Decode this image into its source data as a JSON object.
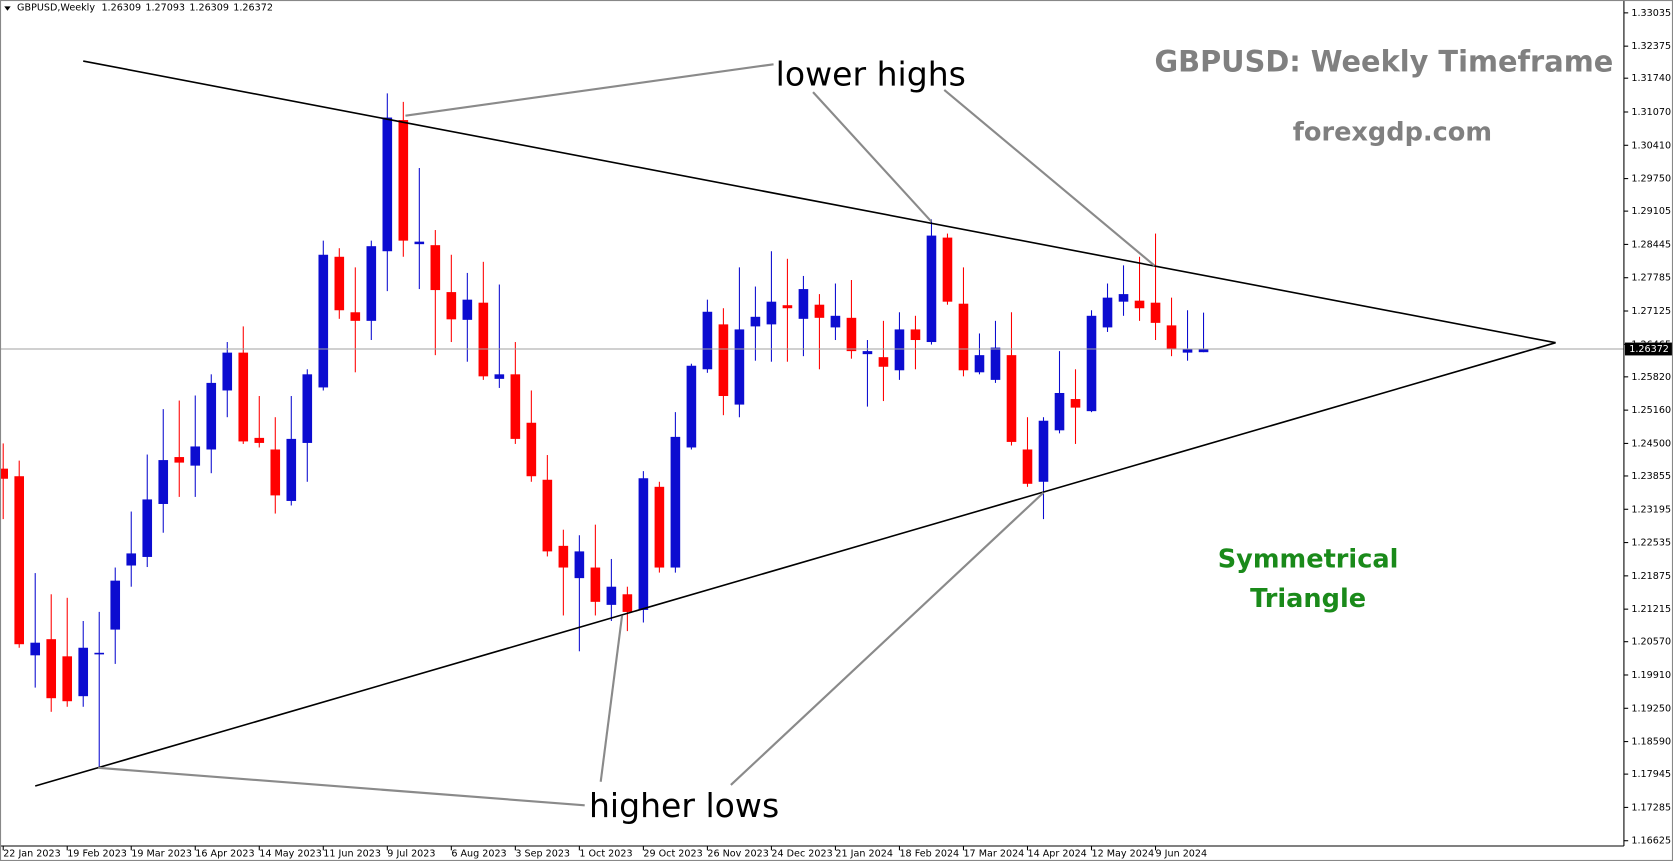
{
  "chart_data": {
    "type": "candlestick",
    "symbol": "GBPUSD,Weekly",
    "title": "GBPUSD: Weekly Timeframe",
    "subtitle": "forexgdp.com",
    "annotations": [
      "lower highs",
      "higher lows",
      "Symmetrical",
      "Triangle"
    ],
    "up_color": "#0c0cd0",
    "down_color": "#ff0000",
    "categories": [
      "22 Jan 2023",
      null,
      null,
      null,
      "19 Feb 2023",
      null,
      null,
      null,
      "19 Mar 2023",
      null,
      null,
      null,
      "16 Apr 2023",
      null,
      null,
      null,
      "14 May 2023",
      null,
      null,
      null,
      "11 Jun 2023",
      null,
      null,
      null,
      "9 Jul 2023",
      null,
      null,
      null,
      "6 Aug 2023",
      null,
      null,
      null,
      "3 Sep 2023",
      null,
      null,
      null,
      "1 Oct 2023",
      null,
      null,
      null,
      "29 Oct 2023",
      null,
      null,
      null,
      "26 Nov 2023",
      null,
      null,
      null,
      "24 Dec 2023",
      null,
      null,
      null,
      "21 Jan 2024",
      null,
      null,
      null,
      "18 Feb 2024",
      null,
      null,
      null,
      "17 Mar 2024",
      null,
      null,
      null,
      "14 Apr 2024",
      null,
      null,
      null,
      "12 May 2024",
      null,
      null,
      null,
      "9 Jun 2024",
      null,
      null,
      null
    ],
    "open": [
      1.24,
      1.2385,
      1.203,
      1.2062,
      1.2028,
      1.1949,
      1.2033,
      1.2081,
      1.2208,
      1.2225,
      1.233,
      1.2423,
      1.2406,
      1.2438,
      1.2555,
      1.263,
      1.2461,
      1.2438,
      1.2336,
      1.2451,
      1.2561,
      1.282,
      1.271,
      1.2693,
      1.2831,
      1.3091,
      1.2845,
      1.2843,
      1.275,
      1.2695,
      1.2729,
      1.2578,
      1.2587,
      1.2491,
      1.2378,
      1.2247,
      1.2183,
      1.2204,
      1.213,
      1.2151,
      1.212,
      1.2364,
      1.2204,
      1.2442,
      1.2597,
      1.2686,
      1.2527,
      1.2682,
      1.2686,
      1.2724,
      1.2697,
      1.2725,
      1.268,
      1.2699,
      1.2627,
      1.2621,
      1.2595,
      1.2676,
      1.2651,
      1.2858,
      1.2727,
      1.2591,
      1.2576,
      1.2625,
      1.2438,
      1.2374,
      1.2476,
      1.2538,
      1.2514,
      1.268,
      1.2731,
      1.2733,
      1.2729,
      1.2684,
      1.263,
      1.26309
    ],
    "high": [
      1.245,
      1.2416,
      1.2193,
      1.2151,
      1.2144,
      1.2098,
      1.2116,
      1.2204,
      1.2315,
      1.2428,
      1.2518,
      1.2535,
      1.2545,
      1.2587,
      1.2651,
      1.2682,
      1.2544,
      1.2502,
      1.2544,
      1.2597,
      1.2852,
      1.2837,
      1.2799,
      1.2852,
      1.3144,
      1.3127,
      1.2996,
      1.2873,
      1.2824,
      1.2788,
      1.281,
      1.2765,
      1.2651,
      1.2555,
      1.2427,
      1.2279,
      1.2268,
      1.2289,
      1.2221,
      1.2166,
      1.2395,
      1.2374,
      1.2512,
      1.2608,
      1.2735,
      1.2718,
      1.2799,
      1.2761,
      1.2831,
      1.2816,
      1.2782,
      1.2746,
      1.2767,
      1.2774,
      1.2655,
      1.2693,
      1.271,
      1.2703,
      1.2894,
      1.2866,
      1.2799,
      1.2668,
      1.2693,
      1.271,
      1.2502,
      1.2502,
      1.2633,
      1.2597,
      1.2714,
      1.2767,
      1.2803,
      1.282,
      1.2866,
      1.2739,
      1.2714,
      1.27093
    ],
    "low": [
      1.23,
      1.2045,
      1.1966,
      1.1918,
      1.1928,
      1.1928,
      1.1807,
      1.2013,
      1.2166,
      1.2205,
      1.2273,
      1.2344,
      1.2344,
      1.2391,
      1.2502,
      1.2449,
      1.2442,
      1.2311,
      1.2327,
      1.2374,
      1.2555,
      1.2697,
      1.2591,
      1.2655,
      1.2752,
      1.282,
      1.2756,
      1.2625,
      1.2651,
      1.2612,
      1.2576,
      1.256,
      1.2449,
      1.2374,
      1.2226,
      1.2109,
      1.2038,
      1.2109,
      1.2098,
      1.2078,
      1.2095,
      1.2194,
      1.2194,
      1.2438,
      1.259,
      1.2506,
      1.2502,
      1.2614,
      1.2612,
      1.2612,
      1.2623,
      1.2597,
      1.2655,
      1.2618,
      1.2523,
      1.2534,
      1.2576,
      1.2597,
      1.2646,
      1.2725,
      1.2583,
      1.2587,
      1.257,
      1.2446,
      1.2364,
      1.23,
      1.247,
      1.2449,
      1.2512,
      1.2671,
      1.2703,
      1.2693,
      1.2655,
      1.2623,
      1.2614,
      1.26309
    ],
    "close": [
      1.238,
      1.2052,
      1.2055,
      1.1945,
      1.1939,
      1.2045,
      1.2035,
      1.2178,
      1.2232,
      1.2339,
      1.2417,
      1.2412,
      1.2444,
      1.257,
      1.263,
      1.2454,
      1.2451,
      1.2347,
      1.2459,
      1.2587,
      1.2824,
      1.2714,
      1.2693,
      1.2841,
      1.3096,
      1.2852,
      1.285,
      1.2754,
      1.2696,
      1.2735,
      1.2583,
      1.2587,
      1.2459,
      1.2385,
      1.2236,
      1.2204,
      1.2236,
      1.2136,
      1.2166,
      1.2116,
      1.2381,
      1.2204,
      1.2463,
      1.2604,
      1.2711,
      1.2544,
      1.2676,
      1.2701,
      1.2731,
      1.2718,
      1.2756,
      1.2699,
      1.2703,
      1.2633,
      1.2633,
      1.2602,
      1.2676,
      1.2655,
      1.2862,
      1.2731,
      1.2595,
      1.2625,
      1.264,
      1.2453,
      1.237,
      1.2495,
      1.255,
      1.2521,
      1.2703,
      1.2739,
      1.2746,
      1.2718,
      1.2689,
      1.2637,
      1.2637,
      1.26372
    ],
    "ylim": [
      1.1652,
      1.3329
    ],
    "yticks": [
      {
        "value": 1.33035,
        "label": "1.33035"
      },
      {
        "value": 1.32375,
        "label": "1.32375"
      },
      {
        "value": 1.3174,
        "label": "1.31740"
      },
      {
        "value": 1.3107,
        "label": "1.31070"
      },
      {
        "value": 1.3041,
        "label": "1.30410"
      },
      {
        "value": 1.2975,
        "label": "1.29750"
      },
      {
        "value": 1.29105,
        "label": "1.29105"
      },
      {
        "value": 1.28445,
        "label": "1.28445"
      },
      {
        "value": 1.27785,
        "label": "1.27785"
      },
      {
        "value": 1.27125,
        "label": "1.27125"
      },
      {
        "value": 1.26465,
        "label": "1.26465"
      },
      {
        "value": 1.2582,
        "label": "1.25820"
      },
      {
        "value": 1.2516,
        "label": "1.25160"
      },
      {
        "value": 1.245,
        "label": "1.24500"
      },
      {
        "value": 1.23855,
        "label": "1.23855"
      },
      {
        "value": 1.23195,
        "label": "1.23195"
      },
      {
        "value": 1.22535,
        "label": "1.22535"
      },
      {
        "value": 1.21875,
        "label": "1.21875"
      },
      {
        "value": 1.21215,
        "label": "1.21215"
      },
      {
        "value": 1.2057,
        "label": "1.20570"
      },
      {
        "value": 1.1991,
        "label": "1.19910"
      },
      {
        "value": 1.1925,
        "label": "1.19250"
      },
      {
        "value": 1.1859,
        "label": "1.18590"
      },
      {
        "value": 1.17945,
        "label": "1.17945"
      },
      {
        "value": 1.17285,
        "label": "1.17285"
      },
      {
        "value": 1.16625,
        "label": "1.16625"
      }
    ],
    "grid": false
  }
}
